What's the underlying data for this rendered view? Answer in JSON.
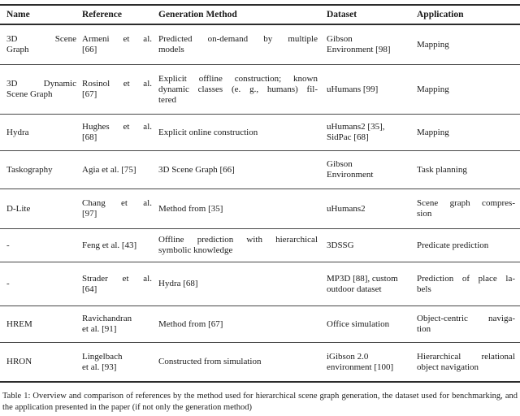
{
  "table": {
    "columns": [
      "Name",
      "Reference",
      "Generation Method",
      "Dataset",
      "Application"
    ],
    "rows": [
      {
        "name": [
          "3D Scene",
          "Graph"
        ],
        "reference": [
          "Armeni et al.",
          "[66]"
        ],
        "method": [
          "Predicted on-demand by multiple",
          "models"
        ],
        "dataset": [
          "Gibson",
          "Environment [98]"
        ],
        "application": [
          "Mapping"
        ]
      },
      {
        "name": [
          "3D Dynamic",
          "Scene Graph"
        ],
        "reference": [
          "Rosinol et al.",
          "[67]"
        ],
        "method": [
          "Explicit offline construction; known",
          "dynamic classes (e. g., humans) fil-",
          "tered"
        ],
        "dataset": [
          "uHumans [99]"
        ],
        "application": [
          "Mapping"
        ]
      },
      {
        "name": [
          "Hydra"
        ],
        "reference": [
          "Hughes et al.",
          "[68]"
        ],
        "method": [
          "Explicit online construction"
        ],
        "dataset": [
          "uHumans2 [35],",
          "SidPac [68]"
        ],
        "application": [
          "Mapping"
        ]
      },
      {
        "name": [
          "Taskography"
        ],
        "reference": [
          "Agia et al. [75]"
        ],
        "method": [
          "3D Scene Graph [66]"
        ],
        "dataset": [
          "Gibson",
          "Environment"
        ],
        "application": [
          "Task planning"
        ]
      },
      {
        "name": [
          "D-Lite"
        ],
        "reference": [
          "Chang et al.",
          "[97]"
        ],
        "method": [
          "Method from [35]"
        ],
        "dataset": [
          "uHumans2"
        ],
        "application": [
          "Scene graph compres-",
          "sion"
        ]
      },
      {
        "name": [
          "-"
        ],
        "reference": [
          "Feng et al. [43]"
        ],
        "method": [
          "Offline prediction with hierarchical",
          "symbolic knowledge"
        ],
        "dataset": [
          "3DSSG"
        ],
        "application": [
          "Predicate prediction"
        ]
      },
      {
        "name": [
          "-"
        ],
        "reference": [
          "Strader et al.",
          "[64]"
        ],
        "method": [
          "Hydra [68]"
        ],
        "dataset": [
          "MP3D [88], custom",
          "outdoor dataset"
        ],
        "application": [
          "Prediction of place la-",
          "bels"
        ]
      },
      {
        "name": [
          "HREM"
        ],
        "reference": [
          "Ravichandran",
          "et al. [91]"
        ],
        "method": [
          "Method from [67]"
        ],
        "dataset": [
          "Office simulation"
        ],
        "application": [
          "Object-centric naviga-",
          "tion"
        ]
      },
      {
        "name": [
          "HRON"
        ],
        "reference": [
          "Lingelbach",
          "et al. [93]"
        ],
        "method": [
          "Constructed from simulation"
        ],
        "dataset": [
          "iGibson 2.0",
          "environment [100]"
        ],
        "application": [
          "Hierarchical relational",
          "object navigation"
        ]
      }
    ]
  },
  "caption": {
    "text": "Table 1: Overview and comparison of references by the method used for hierarchical scene graph generation, the dataset used for benchmarking, and the application presented in the paper (if not only the generation method)"
  }
}
